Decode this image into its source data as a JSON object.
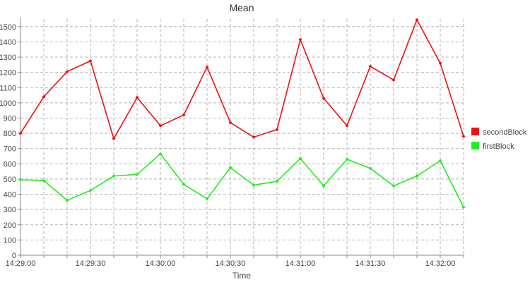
{
  "chart_data": {
    "type": "line",
    "title": "Mean",
    "xlabel": "Time",
    "ylabel": "",
    "x": [
      "14:29:00",
      "14:29:10",
      "14:29:20",
      "14:29:30",
      "14:29:40",
      "14:29:50",
      "14:30:00",
      "14:30:10",
      "14:30:20",
      "14:30:30",
      "14:30:40",
      "14:30:50",
      "14:31:00",
      "14:31:10",
      "14:31:20",
      "14:31:30",
      "14:31:40",
      "14:31:50",
      "14:32:00",
      "14:32:10"
    ],
    "x_ticks": [
      "14:29:00",
      "14:29:30",
      "14:30:00",
      "14:30:30",
      "14:31:00",
      "14:31:30",
      "14:32:00"
    ],
    "y_ticks": [
      0,
      100,
      200,
      300,
      400,
      500,
      600,
      700,
      800,
      900,
      1000,
      1100,
      1200,
      1300,
      1400,
      1500
    ],
    "ylim": [
      0,
      1550
    ],
    "grid": true,
    "legend_position": "right",
    "series": [
      {
        "name": "secondBlock",
        "color": "#ee1111",
        "values": [
          800,
          1040,
          1205,
          1275,
          765,
          1035,
          850,
          920,
          1235,
          870,
          775,
          825,
          1415,
          1030,
          850,
          1240,
          1150,
          1545,
          1260,
          780
        ]
      },
      {
        "name": "firstBlock",
        "color": "#22ee22",
        "values": [
          495,
          490,
          360,
          425,
          520,
          530,
          665,
          465,
          370,
          575,
          460,
          485,
          635,
          455,
          630,
          570,
          455,
          520,
          620,
          315
        ]
      }
    ]
  }
}
